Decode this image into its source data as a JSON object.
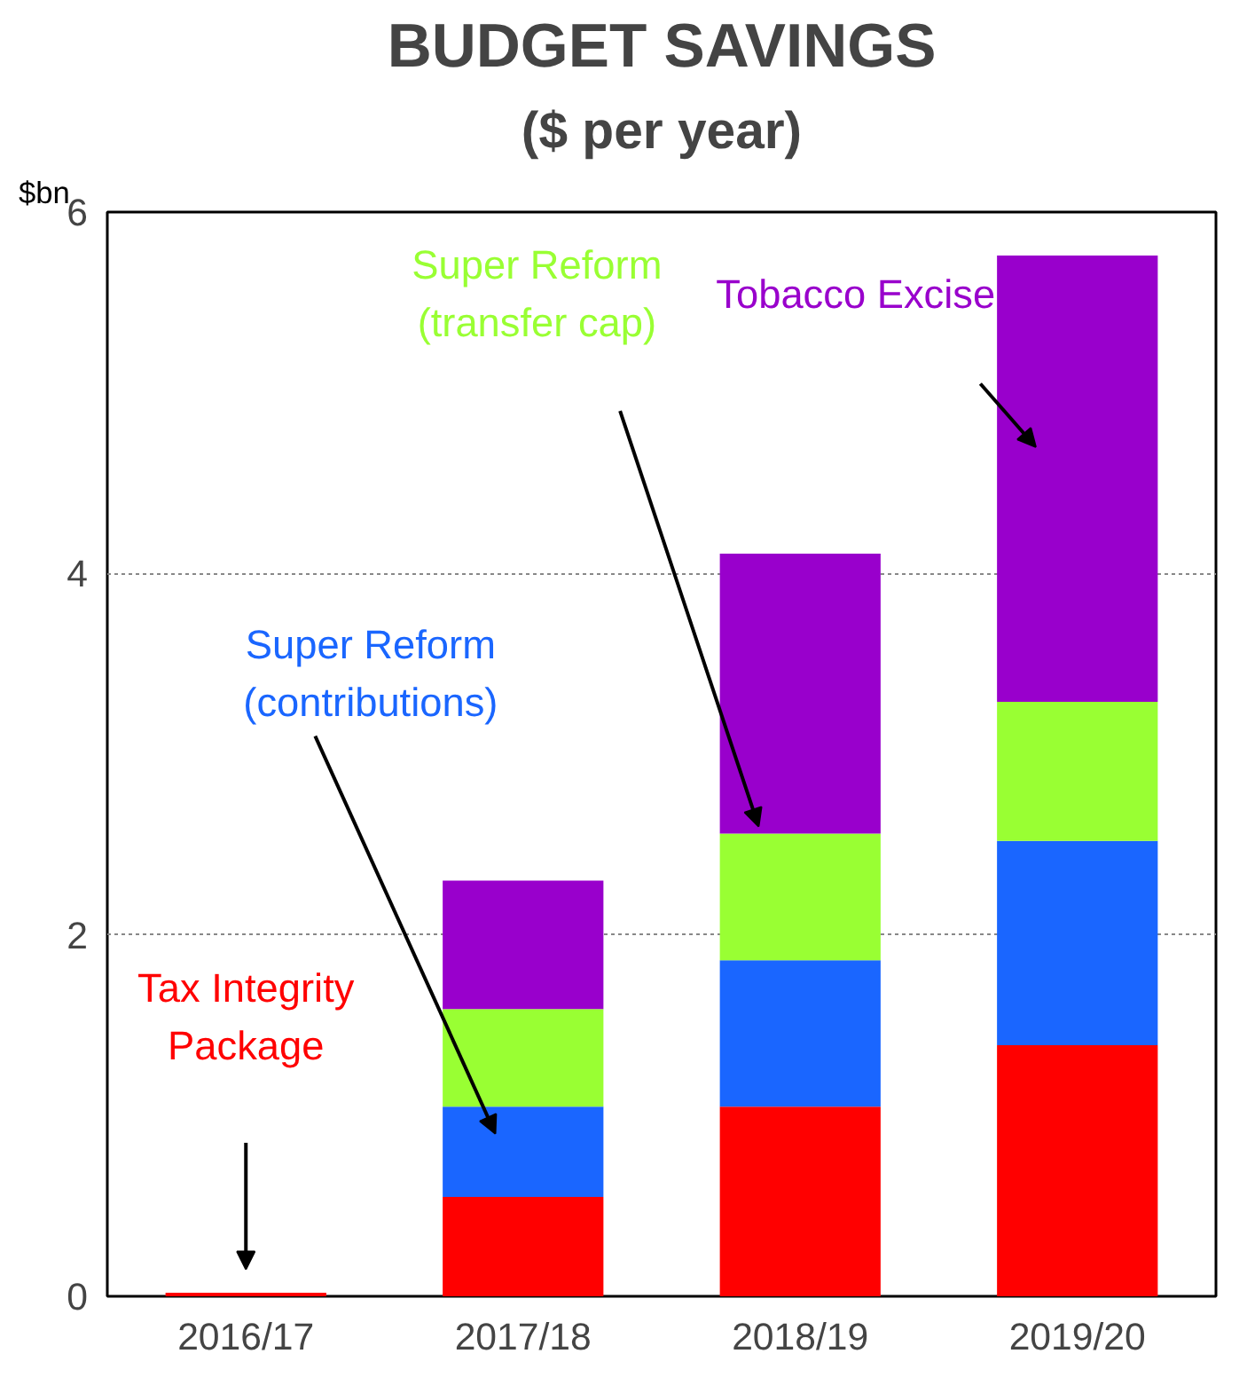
{
  "chart_data": {
    "type": "bar",
    "title": "BUDGET SAVINGS",
    "subtitle": "($ per year)",
    "ylabel": "$bn",
    "categories": [
      "2016/17",
      "2017/18",
      "2018/19",
      "2019/20"
    ],
    "stacked": true,
    "ylim": [
      0,
      6
    ],
    "yticks": [
      0,
      2,
      4,
      6
    ],
    "grid": "y",
    "legend": false,
    "series": [
      {
        "name": "Tax Integrity\nPackage",
        "color": "#ff0000",
        "values": [
          0.02,
          0.55,
          1.05,
          1.39
        ]
      },
      {
        "name": "Super Reform\n(contributions)",
        "color": "#1a66ff",
        "values": [
          0,
          0.5,
          0.81,
          1.13
        ]
      },
      {
        "name": "Super Reform\n(transfer cap)",
        "color": "#99ff33",
        "values": [
          0,
          0.54,
          0.7,
          0.77
        ]
      },
      {
        "name": "Tobacco Excise",
        "color": "#9900cc",
        "values": [
          0,
          0.71,
          1.55,
          2.47
        ]
      }
    ]
  }
}
